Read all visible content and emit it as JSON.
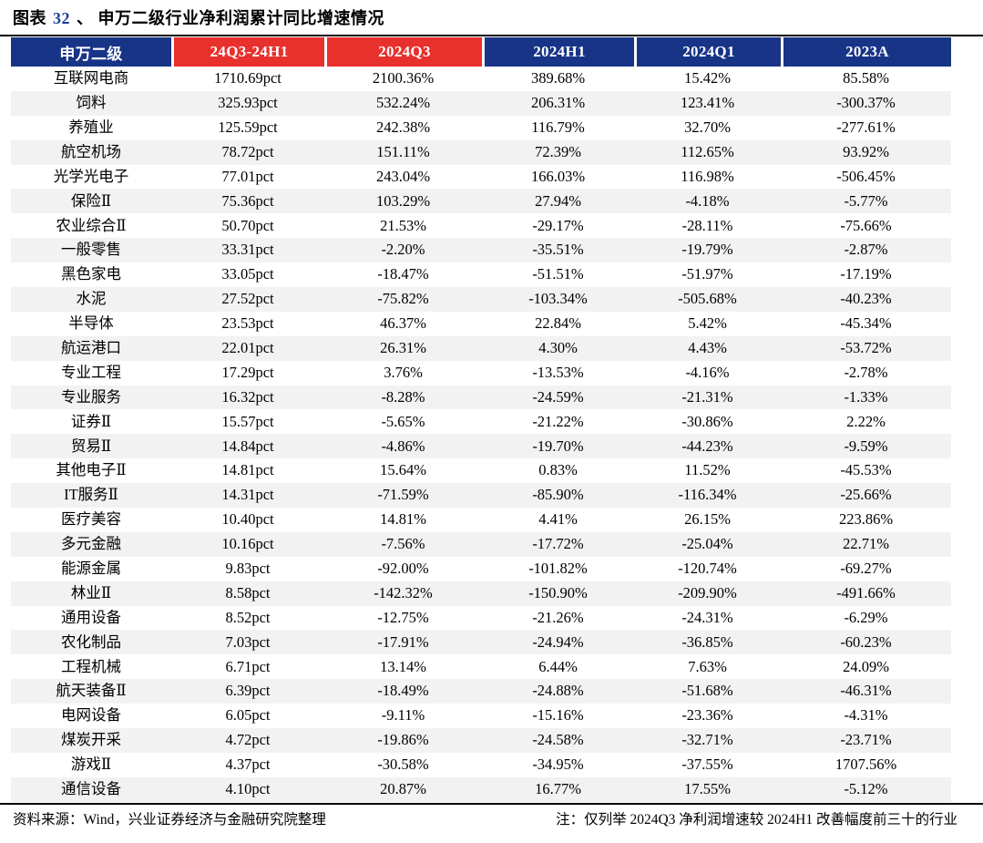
{
  "title": {
    "label_prefix": "图表",
    "figure_number": "32",
    "label_separator": "、",
    "text": "申万二级行业净利润累计同比增速情况"
  },
  "colors": {
    "header_blue": "#183487",
    "header_red": "#E8302D",
    "row_stripe": "#F2F2F2",
    "rule": "#000000",
    "figure_number_blue": "#1F3F9C"
  },
  "table": {
    "columns": [
      {
        "label": "申万二级",
        "color": "blue"
      },
      {
        "label": "24Q3-24H1",
        "color": "red"
      },
      {
        "label": "2024Q3",
        "color": "red"
      },
      {
        "label": "2024H1",
        "color": "blue"
      },
      {
        "label": "2024Q1",
        "color": "blue"
      },
      {
        "label": "2023A",
        "color": "blue"
      }
    ],
    "rows": [
      [
        "互联网电商",
        "1710.69pct",
        "2100.36%",
        "389.68%",
        "15.42%",
        "85.58%"
      ],
      [
        "饲料",
        "325.93pct",
        "532.24%",
        "206.31%",
        "123.41%",
        "-300.37%"
      ],
      [
        "养殖业",
        "125.59pct",
        "242.38%",
        "116.79%",
        "32.70%",
        "-277.61%"
      ],
      [
        "航空机场",
        "78.72pct",
        "151.11%",
        "72.39%",
        "112.65%",
        "93.92%"
      ],
      [
        "光学光电子",
        "77.01pct",
        "243.04%",
        "166.03%",
        "116.98%",
        "-506.45%"
      ],
      [
        "保险Ⅱ",
        "75.36pct",
        "103.29%",
        "27.94%",
        "-4.18%",
        "-5.77%"
      ],
      [
        "农业综合Ⅱ",
        "50.70pct",
        "21.53%",
        "-29.17%",
        "-28.11%",
        "-75.66%"
      ],
      [
        "一般零售",
        "33.31pct",
        "-2.20%",
        "-35.51%",
        "-19.79%",
        "-2.87%"
      ],
      [
        "黑色家电",
        "33.05pct",
        "-18.47%",
        "-51.51%",
        "-51.97%",
        "-17.19%"
      ],
      [
        "水泥",
        "27.52pct",
        "-75.82%",
        "-103.34%",
        "-505.68%",
        "-40.23%"
      ],
      [
        "半导体",
        "23.53pct",
        "46.37%",
        "22.84%",
        "5.42%",
        "-45.34%"
      ],
      [
        "航运港口",
        "22.01pct",
        "26.31%",
        "4.30%",
        "4.43%",
        "-53.72%"
      ],
      [
        "专业工程",
        "17.29pct",
        "3.76%",
        "-13.53%",
        "-4.16%",
        "-2.78%"
      ],
      [
        "专业服务",
        "16.32pct",
        "-8.28%",
        "-24.59%",
        "-21.31%",
        "-1.33%"
      ],
      [
        "证券Ⅱ",
        "15.57pct",
        "-5.65%",
        "-21.22%",
        "-30.86%",
        "2.22%"
      ],
      [
        "贸易Ⅱ",
        "14.84pct",
        "-4.86%",
        "-19.70%",
        "-44.23%",
        "-9.59%"
      ],
      [
        "其他电子Ⅱ",
        "14.81pct",
        "15.64%",
        "0.83%",
        "11.52%",
        "-45.53%"
      ],
      [
        "IT服务Ⅱ",
        "14.31pct",
        "-71.59%",
        "-85.90%",
        "-116.34%",
        "-25.66%"
      ],
      [
        "医疗美容",
        "10.40pct",
        "14.81%",
        "4.41%",
        "26.15%",
        "223.86%"
      ],
      [
        "多元金融",
        "10.16pct",
        "-7.56%",
        "-17.72%",
        "-25.04%",
        "22.71%"
      ],
      [
        "能源金属",
        "9.83pct",
        "-92.00%",
        "-101.82%",
        "-120.74%",
        "-69.27%"
      ],
      [
        "林业Ⅱ",
        "8.58pct",
        "-142.32%",
        "-150.90%",
        "-209.90%",
        "-491.66%"
      ],
      [
        "通用设备",
        "8.52pct",
        "-12.75%",
        "-21.26%",
        "-24.31%",
        "-6.29%"
      ],
      [
        "农化制品",
        "7.03pct",
        "-17.91%",
        "-24.94%",
        "-36.85%",
        "-60.23%"
      ],
      [
        "工程机械",
        "6.71pct",
        "13.14%",
        "6.44%",
        "7.63%",
        "24.09%"
      ],
      [
        "航天装备Ⅱ",
        "6.39pct",
        "-18.49%",
        "-24.88%",
        "-51.68%",
        "-46.31%"
      ],
      [
        "电网设备",
        "6.05pct",
        "-9.11%",
        "-15.16%",
        "-23.36%",
        "-4.31%"
      ],
      [
        "煤炭开采",
        "4.72pct",
        "-19.86%",
        "-24.58%",
        "-32.71%",
        "-23.71%"
      ],
      [
        "游戏Ⅱ",
        "4.37pct",
        "-30.58%",
        "-34.95%",
        "-37.55%",
        "1707.56%"
      ],
      [
        "通信设备",
        "4.10pct",
        "20.87%",
        "16.77%",
        "17.55%",
        "-5.12%"
      ]
    ]
  },
  "footer": {
    "source": "资料来源：Wind，兴业证券经济与金融研究院整理",
    "note": "注：仅列举 2024Q3 净利润增速较 2024H1 改善幅度前三十的行业"
  }
}
